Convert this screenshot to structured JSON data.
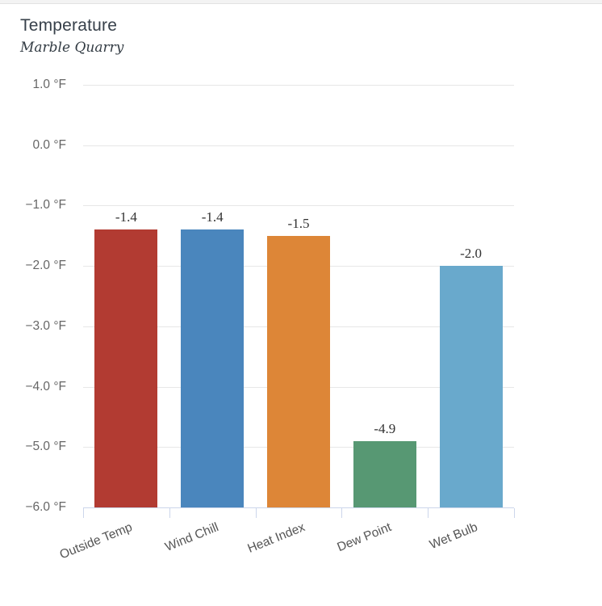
{
  "chart_data": {
    "type": "bar",
    "title": "Temperature",
    "subtitle": "Marble Quarry",
    "categories": [
      "Outside Temp",
      "Wind Chill",
      "Heat Index",
      "Dew Point",
      "Wet Bulb"
    ],
    "values": [
      -1.4,
      -1.4,
      -1.5,
      -4.9,
      -2.0
    ],
    "data_labels": [
      "-1.4",
      "-1.4",
      "-1.5",
      "-4.9",
      "-2.0"
    ],
    "bar_colors": [
      "#b23b32",
      "#4a86bd",
      "#dd8637",
      "#579873",
      "#69a9cc"
    ],
    "ylabel_unit": "°F",
    "ylim": [
      -6.0,
      1.0
    ],
    "ytick_values": [
      1.0,
      0.0,
      -1.0,
      -2.0,
      -3.0,
      -4.0,
      -5.0,
      -6.0
    ],
    "ytick_labels": [
      "1.0 °F",
      "0.0 °F",
      "−1.0 °F",
      "−2.0 °F",
      "−3.0 °F",
      "−4.0 °F",
      "−5.0 °F",
      "−6.0 °F"
    ],
    "xlabel": "",
    "ylabel": "",
    "grid": true,
    "legend": false,
    "colors": {
      "grid": "#e7e7e7",
      "axis": "#ccd6eb",
      "y_tick_label": "#666666",
      "category_label": "#555555",
      "data_label": "#333333",
      "title": "#37404a",
      "subtitle": "#333c44",
      "background": "#ffffff"
    }
  }
}
